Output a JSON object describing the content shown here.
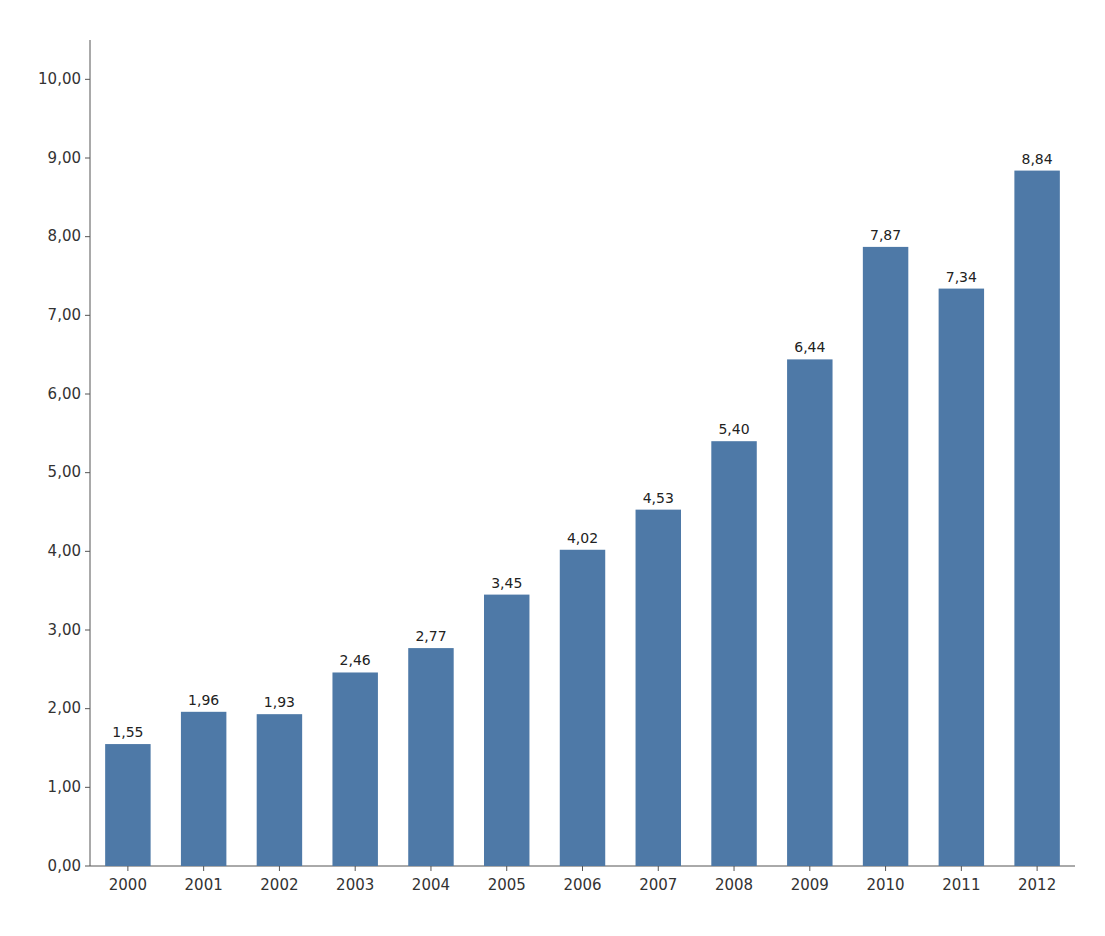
{
  "chart_data": {
    "type": "bar",
    "categories": [
      "2000",
      "2001",
      "2002",
      "2003",
      "2004",
      "2005",
      "2006",
      "2007",
      "2008",
      "2009",
      "2010",
      "2011",
      "2012"
    ],
    "values": [
      1.55,
      1.96,
      1.93,
      2.46,
      2.77,
      3.45,
      4.02,
      4.53,
      5.4,
      6.44,
      7.87,
      7.34,
      8.84
    ],
    "value_labels": [
      "1,55",
      "1,96",
      "1,93",
      "2,46",
      "2,77",
      "3,45",
      "4,02",
      "4,53",
      "5,40",
      "6,44",
      "7,87",
      "7,34",
      "8,84"
    ],
    "data_labels": true,
    "ylim": [
      0,
      10.5
    ],
    "yticks": [
      {
        "value": 0.0,
        "label": "0,00"
      },
      {
        "value": 1.0,
        "label": "1,00"
      },
      {
        "value": 2.0,
        "label": "2,00"
      },
      {
        "value": 3.0,
        "label": "3,00"
      },
      {
        "value": 4.0,
        "label": "4,00"
      },
      {
        "value": 5.0,
        "label": "5,00"
      },
      {
        "value": 6.0,
        "label": "6,00"
      },
      {
        "value": 7.0,
        "label": "7,00"
      },
      {
        "value": 8.0,
        "label": "8,00"
      },
      {
        "value": 9.0,
        "label": "9,00"
      },
      {
        "value": 10.0,
        "label": "10,00"
      }
    ],
    "grid": false
  }
}
